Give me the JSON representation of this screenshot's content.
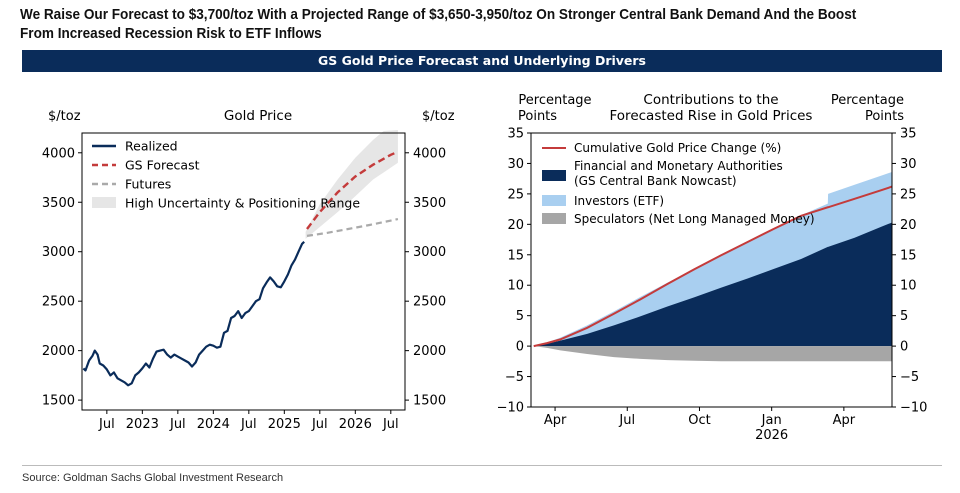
{
  "headline": "We Raise Our Forecast to $3,700/toz With a Projected Range of $3,650-3,950/toz On Stronger Central Bank Demand And the Boost From Increased Recession Risk to ETF Inflows",
  "banner": "GS Gold Price Forecast and Underlying Drivers",
  "source": "Source: Goldman Sachs Global Investment Research",
  "colors": {
    "navy": "#0a2c5a",
    "red": "#c43b3b",
    "lightblue": "#a9cff0",
    "grey": "#a6a6a6",
    "band": "#e6e6e6"
  },
  "chart_data": [
    {
      "type": "line",
      "title": "Gold Price",
      "ylabel_left": "$/toz",
      "ylabel_right": "$/toz",
      "ylim": [
        1400,
        4200
      ],
      "yticks": [
        1500,
        2000,
        2500,
        3000,
        3500,
        4000
      ],
      "ytick_labels": [
        "1500",
        "2000",
        "2500",
        "3000",
        "3500",
        "4000"
      ],
      "xlim": [
        2022.15,
        2026.7
      ],
      "xticks": [
        {
          "x": 2022.5,
          "label": "Jul"
        },
        {
          "x": 2023.0,
          "label": "2023"
        },
        {
          "x": 2023.5,
          "label": "Jul"
        },
        {
          "x": 2024.0,
          "label": "2024"
        },
        {
          "x": 2024.5,
          "label": "Jul"
        },
        {
          "x": 2025.0,
          "label": "2025"
        },
        {
          "x": 2025.5,
          "label": "Jul"
        },
        {
          "x": 2026.0,
          "label": "2026"
        },
        {
          "x": 2026.5,
          "label": "Jul"
        }
      ],
      "legend": [
        "Realized",
        "GS Forecast",
        "Futures",
        "High Uncertainty & Positioning Range"
      ],
      "legend_position": "top-left",
      "series": [
        {
          "name": "Realized",
          "style": "solid",
          "points": [
            [
              2022.17,
              1820
            ],
            [
              2022.2,
              1800
            ],
            [
              2022.25,
              1900
            ],
            [
              2022.3,
              1950
            ],
            [
              2022.33,
              2000
            ],
            [
              2022.37,
              1960
            ],
            [
              2022.4,
              1870
            ],
            [
              2022.45,
              1850
            ],
            [
              2022.5,
              1810
            ],
            [
              2022.55,
              1750
            ],
            [
              2022.6,
              1780
            ],
            [
              2022.65,
              1720
            ],
            [
              2022.7,
              1700
            ],
            [
              2022.75,
              1680
            ],
            [
              2022.8,
              1650
            ],
            [
              2022.85,
              1670
            ],
            [
              2022.9,
              1750
            ],
            [
              2022.95,
              1780
            ],
            [
              2023.0,
              1820
            ],
            [
              2023.05,
              1870
            ],
            [
              2023.1,
              1830
            ],
            [
              2023.15,
              1920
            ],
            [
              2023.2,
              1990
            ],
            [
              2023.25,
              2000
            ],
            [
              2023.3,
              2010
            ],
            [
              2023.35,
              1960
            ],
            [
              2023.4,
              1930
            ],
            [
              2023.45,
              1960
            ],
            [
              2023.5,
              1940
            ],
            [
              2023.55,
              1920
            ],
            [
              2023.6,
              1900
            ],
            [
              2023.65,
              1880
            ],
            [
              2023.7,
              1840
            ],
            [
              2023.75,
              1880
            ],
            [
              2023.8,
              1960
            ],
            [
              2023.85,
              2000
            ],
            [
              2023.9,
              2040
            ],
            [
              2023.95,
              2060
            ],
            [
              2024.0,
              2050
            ],
            [
              2024.05,
              2030
            ],
            [
              2024.1,
              2040
            ],
            [
              2024.15,
              2180
            ],
            [
              2024.2,
              2200
            ],
            [
              2024.25,
              2330
            ],
            [
              2024.3,
              2350
            ],
            [
              2024.35,
              2400
            ],
            [
              2024.4,
              2330
            ],
            [
              2024.45,
              2380
            ],
            [
              2024.5,
              2400
            ],
            [
              2024.55,
              2450
            ],
            [
              2024.6,
              2500
            ],
            [
              2024.65,
              2520
            ],
            [
              2024.7,
              2630
            ],
            [
              2024.75,
              2690
            ],
            [
              2024.8,
              2740
            ],
            [
              2024.85,
              2700
            ],
            [
              2024.9,
              2650
            ],
            [
              2024.95,
              2640
            ],
            [
              2025.0,
              2700
            ],
            [
              2025.05,
              2770
            ],
            [
              2025.1,
              2860
            ],
            [
              2025.15,
              2920
            ],
            [
              2025.2,
              3000
            ],
            [
              2025.25,
              3080
            ],
            [
              2025.28,
              3100
            ]
          ]
        },
        {
          "name": "GS Forecast",
          "style": "dashed",
          "points": [
            [
              2025.32,
              3230
            ],
            [
              2025.5,
              3400
            ],
            [
              2025.75,
              3600
            ],
            [
              2026.0,
              3760
            ],
            [
              2026.25,
              3880
            ],
            [
              2026.5,
              3980
            ],
            [
              2026.6,
              4010
            ]
          ]
        },
        {
          "name": "Futures",
          "style": "dashed",
          "points": [
            [
              2025.32,
              3160
            ],
            [
              2025.6,
              3190
            ],
            [
              2025.9,
              3230
            ],
            [
              2026.2,
              3270
            ],
            [
              2026.6,
              3330
            ]
          ]
        },
        {
          "name": "High Uncertainty & Positioning Range",
          "style": "area",
          "upper": [
            [
              2025.3,
              3200
            ],
            [
              2025.5,
              3480
            ],
            [
              2025.75,
              3730
            ],
            [
              2026.0,
              3950
            ],
            [
              2026.25,
              4130
            ],
            [
              2026.4,
              4220
            ],
            [
              2026.6,
              4230
            ]
          ],
          "lower": [
            [
              2025.3,
              3130
            ],
            [
              2025.5,
              3250
            ],
            [
              2025.75,
              3400
            ],
            [
              2026.0,
              3560
            ],
            [
              2026.25,
              3730
            ],
            [
              2026.5,
              3850
            ],
            [
              2026.6,
              3900
            ]
          ]
        }
      ]
    },
    {
      "type": "area",
      "title": "Contributions to the Forecasted Rise in Gold Prices",
      "ylabel_left": "Percentage Points",
      "ylabel_right": "Percentage Points",
      "ylim": [
        -10,
        35
      ],
      "yticks": [
        -10,
        -5,
        0,
        5,
        10,
        15,
        20,
        25,
        30,
        35
      ],
      "ytick_labels": [
        "−10",
        "−5",
        "0",
        "5",
        "10",
        "15",
        "20",
        "25",
        "30",
        "35"
      ],
      "xlim": [
        -0.1,
        13.4
      ],
      "xticks": [
        {
          "x": 0.8,
          "label": "Apr"
        },
        {
          "x": 3.5,
          "label": "Jul"
        },
        {
          "x": 6.2,
          "label": "Oct"
        },
        {
          "x": 8.9,
          "label": "Jan"
        },
        {
          "x": 11.6,
          "label": "Apr"
        }
      ],
      "x_year_label": {
        "x": 8.9,
        "label": "2026"
      },
      "legend": [
        "Cumulative Gold Price Change (%)",
        "Financial and Monetary Authorities (GS Central Bank Nowcast)",
        "Investors (ETF)",
        "Speculators (Net Long Managed Money)"
      ],
      "legend_position": "top-left",
      "x": [
        0,
        0.5,
        1,
        2,
        3,
        4,
        5,
        6,
        7,
        8,
        9,
        10,
        11,
        11.01,
        12,
        13,
        13.4
      ],
      "series": [
        {
          "name": "Financial and Monetary Authorities (GS Central Bank Nowcast)",
          "values": [
            0,
            0.4,
            0.9,
            2.0,
            3.4,
            4.9,
            6.5,
            8.0,
            9.6,
            11.1,
            12.7,
            14.3,
            16.3,
            16.3,
            17.8,
            19.6,
            20.3
          ]
        },
        {
          "name": "Investors (ETF)",
          "values": [
            0,
            0.6,
            1.4,
            3.4,
            5.7,
            8.1,
            10.4,
            12.7,
            15.0,
            17.2,
            19.4,
            21.5,
            23.4,
            25.0,
            26.5,
            28.0,
            28.6
          ]
        },
        {
          "name": "Speculators (Net Long Managed Money)",
          "values": [
            0,
            -0.3,
            -0.7,
            -1.3,
            -1.8,
            -2.1,
            -2.3,
            -2.4,
            -2.5,
            -2.5,
            -2.5,
            -2.5,
            -2.5,
            -2.5,
            -2.5,
            -2.5,
            -2.5
          ]
        },
        {
          "name": "Cumulative Gold Price Change (%)",
          "values": [
            0,
            0.5,
            1.1,
            3.0,
            5.3,
            7.7,
            10.2,
            12.6,
            14.9,
            17.1,
            19.3,
            21.4,
            22.8,
            22.8,
            24.2,
            25.6,
            26.2
          ]
        }
      ]
    }
  ]
}
